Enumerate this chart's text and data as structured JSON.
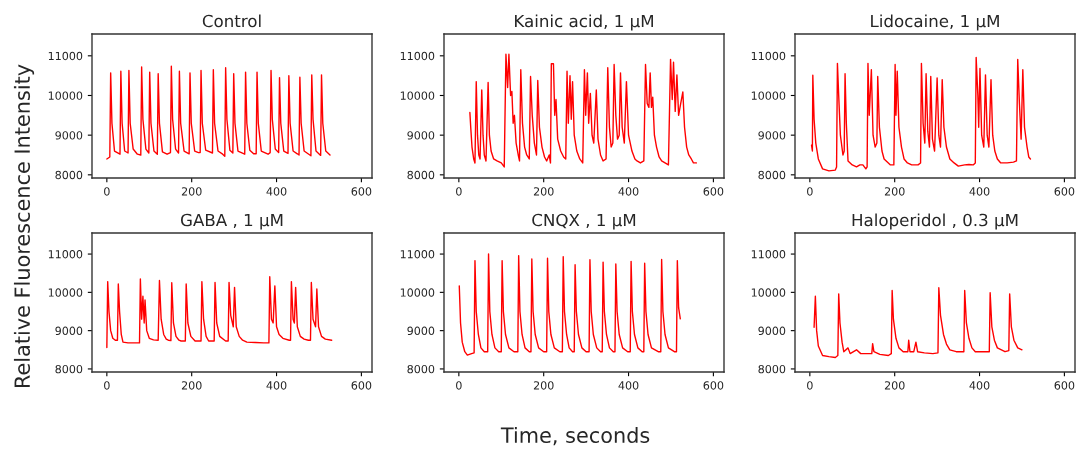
{
  "chart_data": [
    {
      "type": "line",
      "title": "Control",
      "ylabel": "Relative Fluorescence Intensity",
      "xlim": [
        -35,
        625
      ],
      "ylim": [
        7920,
        11550
      ],
      "xticks": [
        0,
        200,
        400,
        600
      ],
      "yticks": [
        8000,
        9000,
        10000,
        11000
      ],
      "x": [
        0,
        7,
        9,
        12,
        18,
        31,
        33,
        36,
        42,
        50,
        52,
        55,
        62,
        72,
        80,
        82,
        85,
        92,
        99,
        101,
        104,
        111,
        119,
        121,
        124,
        131,
        142,
        150,
        152,
        155,
        162,
        169,
        171,
        174,
        182,
        194,
        196,
        199,
        207,
        216,
        220,
        222,
        225,
        233,
        249,
        251,
        254,
        262,
        273,
        278,
        280,
        283,
        290,
        297,
        299,
        302,
        309,
        325,
        327,
        330,
        337,
        346,
        352,
        354,
        357,
        364,
        380,
        385,
        387,
        390,
        397,
        405,
        407,
        410,
        417,
        427,
        429,
        432,
        439,
        449,
        453,
        455,
        458,
        465,
        481,
        483,
        486,
        493,
        504,
        506,
        509,
        516,
        526
      ],
      "series": [
        {
          "color": "#ff0000",
          "values": [
            8400,
            8450,
            10570,
            9300,
            8600,
            8520,
            10610,
            9300,
            8600,
            8550,
            10630,
            9300,
            8650,
            8520,
            8500,
            10720,
            9400,
            8650,
            8550,
            10590,
            9300,
            8600,
            8520,
            10550,
            9300,
            8580,
            8520,
            8560,
            10740,
            9400,
            8650,
            8550,
            10610,
            9300,
            8600,
            8530,
            10570,
            9300,
            8600,
            8560,
            8560,
            10630,
            9300,
            8620,
            8550,
            10650,
            9300,
            8600,
            8520,
            8470,
            10700,
            9400,
            8620,
            8550,
            10550,
            9300,
            8600,
            8520,
            10590,
            9300,
            8620,
            8530,
            8530,
            10590,
            9300,
            8600,
            8520,
            8560,
            10630,
            9400,
            8650,
            8560,
            10450,
            9300,
            8600,
            8540,
            10500,
            9300,
            8600,
            8530,
            8500,
            10460,
            9300,
            8600,
            8480,
            10520,
            9400,
            8600,
            8490,
            10520,
            9300,
            8600,
            8500
          ]
        }
      ]
    },
    {
      "type": "line",
      "title": "Kainic acid, 1 μM",
      "xlim": [
        -35,
        625
      ],
      "ylim": [
        7920,
        11550
      ],
      "xticks": [
        0,
        200,
        400,
        600
      ],
      "yticks": [
        8000,
        9000,
        10000,
        11000
      ],
      "x": [
        26,
        28,
        31,
        35,
        38,
        41,
        44,
        47,
        50,
        54,
        57,
        60,
        64,
        69,
        72,
        76,
        82,
        90,
        100,
        107,
        111,
        115,
        118,
        122,
        125,
        128,
        131,
        135,
        140,
        143,
        146,
        150,
        155,
        160,
        166,
        169,
        173,
        178,
        183,
        186,
        190,
        196,
        202,
        207,
        213,
        216,
        218,
        223,
        226,
        229,
        233,
        240,
        247,
        252,
        255,
        258,
        262,
        265,
        268,
        272,
        278,
        285,
        292,
        296,
        299,
        303,
        306,
        310,
        314,
        318,
        324,
        328,
        334,
        340,
        347,
        351,
        355,
        359,
        363,
        366,
        370,
        374,
        378,
        381,
        385,
        390,
        395,
        400,
        408,
        415,
        420,
        428,
        436,
        440,
        444,
        448,
        451,
        454,
        457,
        461,
        466,
        472,
        478,
        486,
        494,
        499,
        503,
        506,
        510,
        514,
        518,
        523,
        528,
        532,
        537,
        542,
        548,
        553,
        560
      ],
      "series": [
        {
          "color": "#ff0000",
          "values": [
            9570,
            9200,
            8700,
            8400,
            8300,
            10350,
            9000,
            8500,
            8400,
            10140,
            9000,
            8500,
            8350,
            10330,
            9000,
            8600,
            8400,
            8350,
            8300,
            8200,
            11040,
            10200,
            11040,
            10000,
            10100,
            9300,
            9500,
            8800,
            8500,
            8350,
            10650,
            9300,
            8700,
            8500,
            8400,
            10480,
            9500,
            8800,
            8500,
            10380,
            9200,
            8700,
            8450,
            8350,
            8500,
            8300,
            10800,
            10800,
            9500,
            9900,
            8900,
            8600,
            8450,
            8400,
            10610,
            9300,
            10500,
            9400,
            10350,
            9000,
            8600,
            8400,
            8300,
            10650,
            9500,
            10570,
            9300,
            10050,
            9000,
            8800,
            10140,
            8900,
            8500,
            8350,
            8400,
            10700,
            9200,
            8700,
            8800,
            10780,
            9500,
            8900,
            9000,
            10570,
            9200,
            8800,
            10350,
            9000,
            8600,
            8400,
            8350,
            8300,
            8350,
            10780,
            9800,
            9700,
            10570,
            9700,
            9960,
            9000,
            8700,
            8450,
            8350,
            8300,
            8250,
            10910,
            9900,
            10840,
            9600,
            10520,
            9500,
            9800,
            10090,
            9200,
            8700,
            8500,
            8400,
            8300,
            8300
          ]
        }
      ]
    },
    {
      "type": "line",
      "title": "Lidocaine, 1 μM",
      "xlim": [
        -35,
        625
      ],
      "ylim": [
        7920,
        11550
      ],
      "xticks": [
        0,
        200,
        400,
        600
      ],
      "yticks": [
        8000,
        9000,
        10000,
        11000
      ],
      "x": [
        4,
        6,
        7,
        10,
        14,
        20,
        30,
        45,
        60,
        63,
        65,
        68,
        72,
        78,
        81,
        83,
        86,
        90,
        100,
        110,
        118,
        125,
        132,
        135,
        137,
        140,
        145,
        149,
        154,
        158,
        160,
        164,
        170,
        175,
        190,
        198,
        201,
        203,
        206,
        210,
        216,
        222,
        230,
        240,
        255,
        261,
        263,
        267,
        271,
        274,
        278,
        282,
        285,
        289,
        294,
        300,
        304,
        308,
        312,
        316,
        322,
        330,
        340,
        350,
        365,
        375,
        385,
        390,
        392,
        396,
        398,
        401,
        405,
        410,
        414,
        418,
        422,
        427,
        431,
        436,
        442,
        450,
        465,
        480,
        487,
        490,
        494,
        498,
        502,
        506,
        512,
        516,
        520
      ],
      "series": [
        {
          "color": "#ff0000",
          "values": [
            8750,
            8600,
            10510,
            9400,
            8800,
            8400,
            8150,
            8100,
            8120,
            8200,
            10810,
            10000,
            9000,
            8500,
            8600,
            10550,
            9300,
            8350,
            8250,
            8200,
            8250,
            8250,
            8150,
            8200,
            10810,
            9500,
            10650,
            9000,
            8700,
            8800,
            10480,
            9200,
            8600,
            8400,
            8250,
            8250,
            10780,
            9500,
            10610,
            9200,
            8700,
            8400,
            8300,
            8250,
            8250,
            8300,
            10810,
            9300,
            8800,
            10550,
            9100,
            8700,
            10480,
            8900,
            8600,
            10440,
            9000,
            8700,
            10400,
            9200,
            8700,
            8400,
            8300,
            8220,
            8250,
            8260,
            8250,
            8300,
            10960,
            10000,
            9200,
            10680,
            9000,
            8700,
            10520,
            9000,
            8700,
            10400,
            9000,
            8600,
            8400,
            8300,
            8300,
            8320,
            8350,
            10910,
            9800,
            8900,
            10650,
            9200,
            8700,
            8450,
            8400
          ]
        }
      ]
    },
    {
      "type": "line",
      "title": "GABA , 1 μM",
      "xlim": [
        -35,
        625
      ],
      "ylim": [
        7920,
        11550
      ],
      "xticks": [
        0,
        200,
        400,
        600
      ],
      "yticks": [
        8000,
        9000,
        10000,
        11000
      ],
      "x": [
        0,
        2,
        5,
        9,
        14,
        20,
        25,
        27,
        30,
        34,
        38,
        50,
        65,
        77,
        79,
        82,
        85,
        88,
        90,
        94,
        100,
        110,
        121,
        124,
        128,
        134,
        140,
        145,
        151,
        153,
        157,
        163,
        170,
        175,
        185,
        187,
        191,
        198,
        208,
        222,
        224,
        228,
        234,
        240,
        253,
        255,
        259,
        266,
        280,
        286,
        288,
        292,
        298,
        301,
        305,
        312,
        320,
        330,
        350,
        370,
        382,
        384,
        388,
        392,
        396,
        400,
        406,
        415,
        430,
        433,
        435,
        439,
        442,
        445,
        449,
        456,
        465,
        475,
        480,
        482,
        486,
        492,
        495,
        499,
        506,
        515,
        530
      ],
      "series": [
        {
          "color": "#ff0000",
          "values": [
            8560,
            10280,
            9500,
            9000,
            8800,
            8750,
            8750,
            10220,
            9500,
            8900,
            8700,
            8680,
            8680,
            8680,
            10350,
            9300,
            9900,
            9200,
            9800,
            9000,
            8800,
            8760,
            8750,
            10310,
            9300,
            8900,
            8780,
            8750,
            8740,
            10250,
            9200,
            8850,
            8750,
            8730,
            8730,
            10220,
            9200,
            8850,
            8730,
            8730,
            10280,
            9300,
            8850,
            8730,
            8730,
            10260,
            9200,
            8850,
            8730,
            8730,
            10260,
            9400,
            9100,
            10130,
            9100,
            8850,
            8750,
            8700,
            8690,
            8680,
            8680,
            10410,
            9300,
            9200,
            10170,
            9100,
            8900,
            8800,
            8750,
            8750,
            10280,
            9300,
            9200,
            10130,
            9100,
            8850,
            8780,
            8750,
            8750,
            10260,
            9300,
            9100,
            10090,
            9100,
            8850,
            8780,
            8750
          ]
        }
      ]
    },
    {
      "type": "line",
      "title": "CNQX , 1 μM",
      "xlabel": "Time, seconds",
      "xlim": [
        -35,
        625
      ],
      "ylim": [
        7920,
        11550
      ],
      "xticks": [
        0,
        200,
        400,
        600
      ],
      "yticks": [
        8000,
        9000,
        10000,
        11000
      ],
      "x": [
        1,
        4,
        8,
        14,
        20,
        30,
        36,
        38,
        41,
        46,
        52,
        60,
        68,
        70,
        73,
        78,
        85,
        94,
        100,
        102,
        105,
        110,
        118,
        130,
        139,
        141,
        144,
        149,
        156,
        166,
        170,
        172,
        175,
        180,
        188,
        200,
        207,
        209,
        212,
        217,
        225,
        238,
        244,
        246,
        249,
        254,
        260,
        268,
        272,
        274,
        277,
        282,
        290,
        300,
        307,
        309,
        312,
        317,
        325,
        334,
        338,
        340,
        343,
        348,
        355,
        364,
        368,
        370,
        373,
        378,
        386,
        398,
        404,
        406,
        409,
        414,
        422,
        432,
        436,
        438,
        441,
        446,
        454,
        470,
        476,
        478,
        481,
        486,
        494,
        508,
        513,
        515,
        518,
        522
      ],
      "series": [
        {
          "color": "#ff0000",
          "values": [
            10170,
            9200,
            8700,
            8450,
            8360,
            8400,
            8420,
            10830,
            9500,
            8900,
            8550,
            8450,
            8450,
            11000,
            9500,
            8900,
            8550,
            8450,
            8450,
            10830,
            9500,
            8900,
            8550,
            8450,
            8450,
            10960,
            9500,
            8900,
            8550,
            8450,
            8450,
            10870,
            9500,
            8900,
            8550,
            8450,
            8450,
            10890,
            9500,
            8900,
            8550,
            8450,
            8450,
            10930,
            9500,
            8900,
            8550,
            8450,
            8450,
            10720,
            9500,
            8900,
            8550,
            8450,
            8450,
            10850,
            9500,
            8900,
            8550,
            8450,
            8450,
            10790,
            9500,
            8900,
            8550,
            8450,
            8450,
            10740,
            9500,
            8900,
            8550,
            8450,
            8450,
            10810,
            9500,
            8900,
            8550,
            8450,
            8450,
            10760,
            9500,
            8900,
            8550,
            8450,
            8450,
            10860,
            9500,
            8900,
            8550,
            8450,
            8450,
            10830,
            9600,
            9310
          ]
        }
      ]
    },
    {
      "type": "line",
      "title": "Haloperidol , 0.3 μM",
      "xlim": [
        -35,
        625
      ],
      "ylim": [
        7920,
        11550
      ],
      "xticks": [
        0,
        200,
        400,
        600
      ],
      "yticks": [
        8000,
        9000,
        10000,
        11000
      ],
      "x": [
        10,
        13,
        16,
        20,
        30,
        45,
        60,
        66,
        68,
        71,
        76,
        80,
        90,
        95,
        110,
        120,
        140,
        146,
        148,
        151,
        165,
        185,
        192,
        194,
        197,
        203,
        210,
        220,
        231,
        233,
        236,
        245,
        250,
        254,
        270,
        290,
        302,
        304,
        308,
        315,
        322,
        330,
        345,
        355,
        363,
        365,
        369,
        375,
        382,
        390,
        410,
        423,
        425,
        429,
        435,
        442,
        460,
        469,
        471,
        475,
        481,
        490,
        500
      ],
      "series": [
        {
          "color": "#ff0000",
          "values": [
            9090,
            9900,
            9000,
            8600,
            8350,
            8320,
            8300,
            8350,
            9960,
            9200,
            8700,
            8450,
            8550,
            8400,
            8500,
            8400,
            8400,
            8400,
            8660,
            8450,
            8380,
            8350,
            8400,
            10050,
            9300,
            8800,
            8550,
            8450,
            8450,
            8750,
            8450,
            8450,
            8700,
            8450,
            8420,
            8400,
            8420,
            10120,
            9400,
            8900,
            8650,
            8500,
            8450,
            8450,
            8450,
            10050,
            9200,
            8800,
            8550,
            8450,
            8450,
            8450,
            9990,
            9100,
            8750,
            8550,
            8450,
            8480,
            9960,
            9100,
            8750,
            8550,
            8500
          ]
        }
      ]
    }
  ]
}
